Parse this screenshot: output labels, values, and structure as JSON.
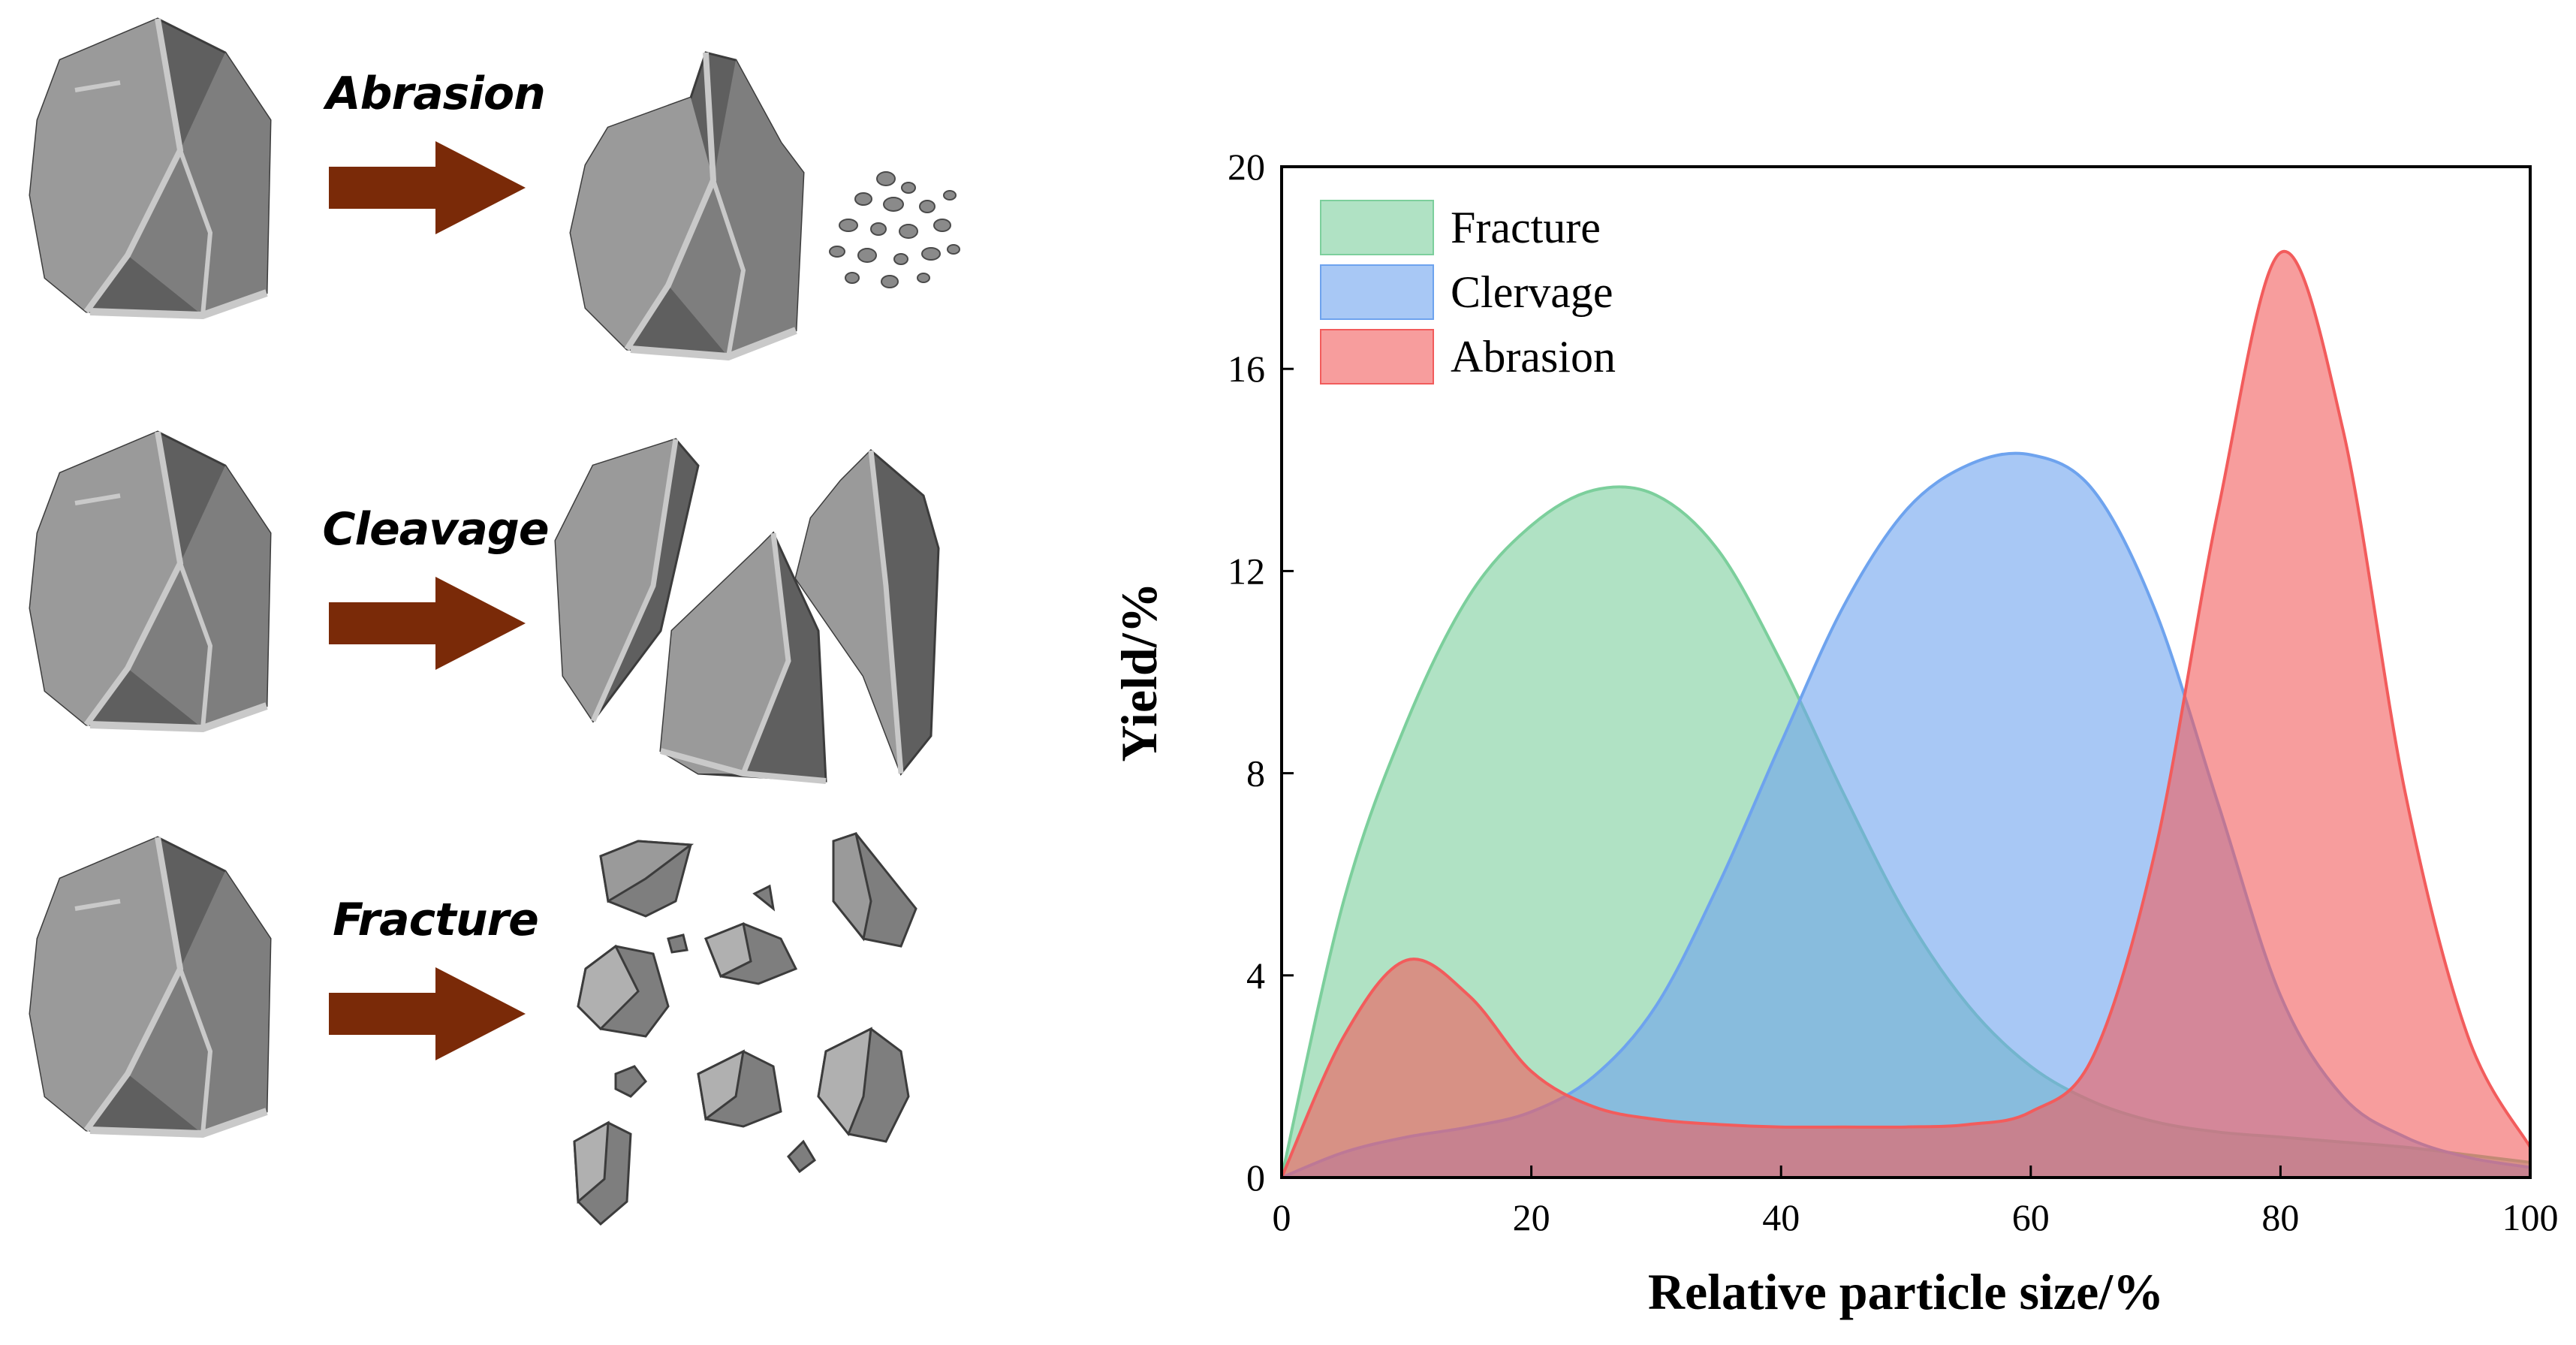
{
  "colors": {
    "rock_face_light": "#9a9a9a",
    "rock_face_mid": "#7e7e7e",
    "rock_face_dark": "#5f5f5f",
    "rock_highlight": "#c9c9c9",
    "arrow": "#7a2a08",
    "fracture": "#7ccf9c",
    "cleavage": "#6ea3ee",
    "abrasion": "#f25c5c"
  },
  "processes": [
    {
      "label": "Abrasion",
      "icon": "rock-abrasion-icon"
    },
    {
      "label": "Cleavage",
      "icon": "rock-cleavage-icon"
    },
    {
      "label": "Fracture",
      "icon": "rock-fracture-icon"
    }
  ],
  "chart_data": {
    "type": "area",
    "title": "",
    "xlabel": "Relative particle size/%",
    "ylabel": "Yield/%",
    "xlim": [
      0,
      100
    ],
    "ylim": [
      0,
      20
    ],
    "xticks": [
      0,
      20,
      40,
      60,
      80,
      100
    ],
    "yticks": [
      0,
      4,
      8,
      12,
      16,
      20
    ],
    "grid": false,
    "legend_position": "top-left",
    "x": [
      0,
      5,
      10,
      15,
      20,
      25,
      30,
      35,
      40,
      45,
      50,
      55,
      60,
      65,
      70,
      75,
      80,
      85,
      90,
      95,
      100
    ],
    "series": [
      {
        "name": "Fracture",
        "color": "#7ccf9c",
        "values": [
          0,
          5.5,
          9.0,
          11.5,
          12.9,
          13.6,
          13.5,
          12.4,
          10.2,
          7.6,
          5.2,
          3.4,
          2.2,
          1.5,
          1.1,
          0.9,
          0.8,
          0.7,
          0.6,
          0.45,
          0.3
        ]
      },
      {
        "name": "Clervage",
        "color": "#6ea3ee",
        "values": [
          0,
          0.5,
          0.8,
          1.0,
          1.3,
          2.0,
          3.4,
          5.8,
          8.6,
          11.3,
          13.2,
          14.1,
          14.3,
          13.6,
          11.2,
          7.4,
          3.6,
          1.6,
          0.8,
          0.4,
          0.2
        ]
      },
      {
        "name": "Abrasion",
        "color": "#f25c5c",
        "values": [
          0,
          2.8,
          4.3,
          3.6,
          2.1,
          1.4,
          1.15,
          1.05,
          1.0,
          1.0,
          1.0,
          1.05,
          1.3,
          2.4,
          6.5,
          13.2,
          18.3,
          14.8,
          7.6,
          2.8,
          0.6
        ]
      }
    ]
  }
}
